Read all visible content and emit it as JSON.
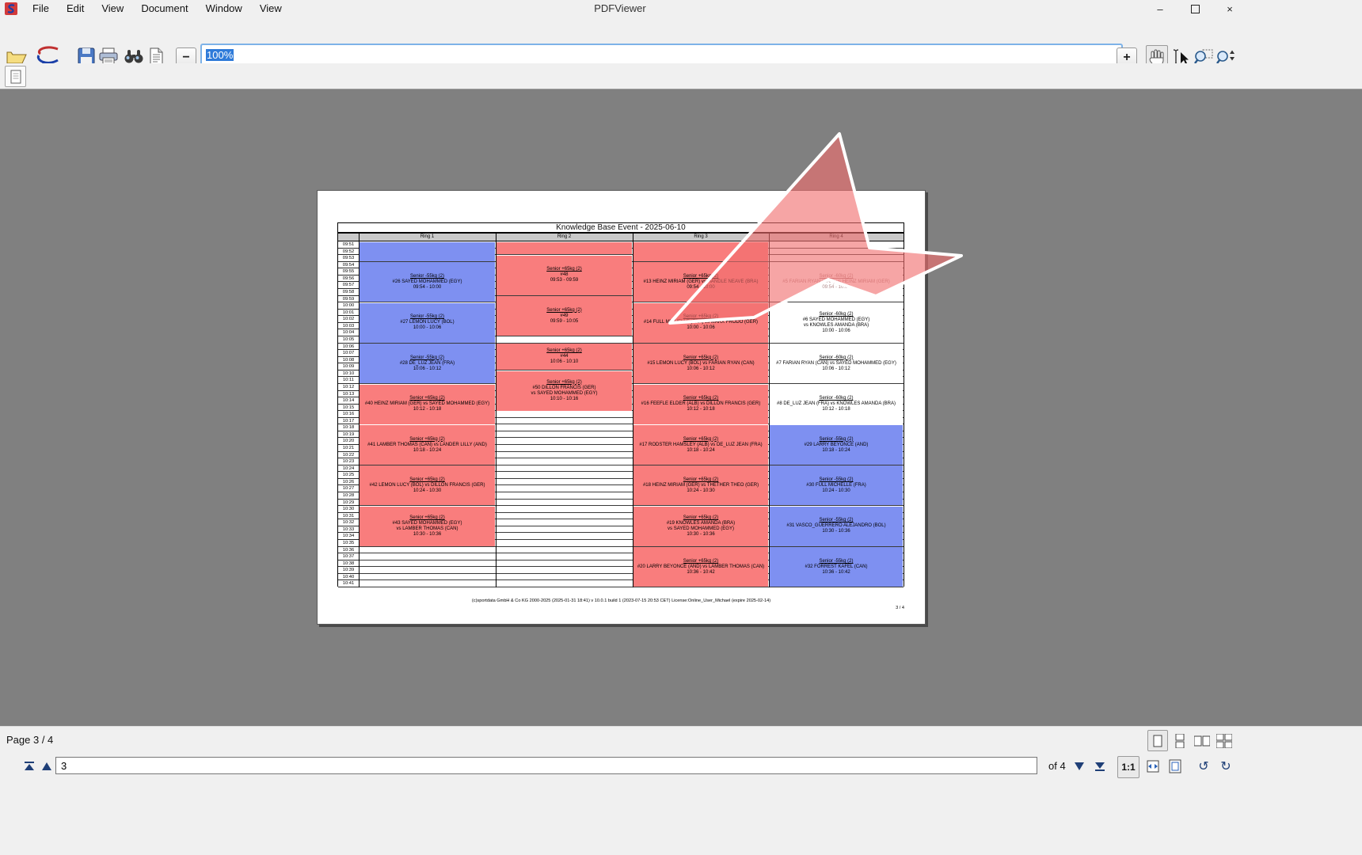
{
  "window": {
    "title": "PDFViewer",
    "menu": [
      "File",
      "Edit",
      "View",
      "Document",
      "Window",
      "View"
    ],
    "controls": {
      "minimize": "–",
      "close": "×"
    }
  },
  "toolbar": {
    "zoom_value": "100%",
    "zoom_out": "−",
    "zoom_in": "+"
  },
  "statusbar": {
    "page_label": "Page 3 / 4",
    "page_input": "3",
    "of_label": "of 4",
    "actual_size_label": "1:1",
    "rotate_left": "↺",
    "rotate_right": "↻"
  },
  "document": {
    "title": "Knowledge Base Event - 2025-06-10",
    "footer": "(c)sportdata GmbH & Co KG 2000-2025 (2025-01-31 18:41) v 10.0.1 build 1 (2023-07-15 20:53 CET) License:Online_User_Michael (expire 2025-02-14)",
    "page_number": "3 / 4",
    "rings": [
      "Ring 1",
      "Ring 2",
      "Ring 3",
      "Ring 4"
    ],
    "colors": {
      "blue": "#7e90f1",
      "red": "#f97d7d",
      "white": "#ffffff",
      "header_bg": "#c9c9c9"
    },
    "time_rows": [
      "09:51",
      "09:52",
      "09:53",
      "09:54",
      "09:55",
      "09:56",
      "09:57",
      "09:58",
      "09:59",
      "10:00",
      "10:01",
      "10:02",
      "10:03",
      "10:04",
      "10:05",
      "10:06",
      "10:07",
      "10:08",
      "10:09",
      "10:10",
      "10:11",
      "10:12",
      "10:13",
      "10:14",
      "10:15",
      "10:16",
      "10:17",
      "10:18",
      "10:19",
      "10:20",
      "10:21",
      "10:22",
      "10:23",
      "10:24",
      "10:25",
      "10:26",
      "10:27",
      "10:28",
      "10:29",
      "10:30",
      "10:31",
      "10:32",
      "10:33",
      "10:34",
      "10:35",
      "10:36",
      "10:37",
      "10:38",
      "10:39",
      "10:40",
      "10:41"
    ],
    "blocks": [
      {
        "ring": 0,
        "row": 0,
        "span": 3,
        "color": "blue",
        "lines": []
      },
      {
        "ring": 0,
        "row": 3,
        "span": 6,
        "color": "blue",
        "lines": [
          "Senior -55kg (2)",
          "#26 SAYED MOHAMMED (EGY)",
          "09:54 - 10:00"
        ]
      },
      {
        "ring": 0,
        "row": 9,
        "span": 6,
        "color": "blue",
        "lines": [
          "Senior -55kg (2)",
          "#27 LEMON LUCY (BOL)",
          "10:00 - 10:06"
        ]
      },
      {
        "ring": 0,
        "row": 15,
        "span": 6,
        "color": "blue",
        "lines": [
          "Senior -55kg (2)",
          "#28 DE_LUZ JEAN (FRA)",
          "10:06 - 10:12"
        ]
      },
      {
        "ring": 0,
        "row": 21,
        "span": 6,
        "color": "red",
        "lines": [
          "Senior +65kg (2)",
          "#40 HEINZ MIRIAM (GER) vs SAYED MOHAMMED (EGY)",
          "10:12 - 10:18"
        ]
      },
      {
        "ring": 0,
        "row": 27,
        "span": 6,
        "color": "red",
        "lines": [
          "Senior +65kg (2)",
          "#41 LAMBER THOMAS (CAN) vs LANDER LILLY (AND)",
          "10:18 - 10:24"
        ]
      },
      {
        "ring": 0,
        "row": 33,
        "span": 6,
        "color": "red",
        "lines": [
          "Senior +65kg (2)",
          "#42 LEMON LUCY (BOL) vs DILLON FRANCIS (GER)",
          "10:24 - 10:30"
        ]
      },
      {
        "ring": 0,
        "row": 39,
        "span": 6,
        "color": "red",
        "lines": [
          "Senior +65kg (2)",
          "#43 SAYED MOHAMMED (EGY)",
          "vs LAMBER THOMAS (CAN)",
          "10:30 - 10:36"
        ]
      },
      {
        "ring": 1,
        "row": 0,
        "span": 2,
        "color": "red",
        "lines": []
      },
      {
        "ring": 1,
        "row": 2,
        "span": 6,
        "color": "red",
        "lines": [
          "Senior +65kg (2)",
          "#48",
          "09:53 - 09:59"
        ]
      },
      {
        "ring": 1,
        "row": 8,
        "span": 6,
        "color": "red",
        "lines": [
          "Senior +65kg (2)",
          "#49",
          "09:59 - 10:05"
        ]
      },
      {
        "ring": 1,
        "row": 15,
        "span": 4,
        "color": "red",
        "lines": [
          "Senior +65kg (2)",
          "#44",
          "10:06 - 10:10"
        ]
      },
      {
        "ring": 1,
        "row": 19,
        "span": 6,
        "color": "red",
        "lines": [
          "Senior +65kg (2)",
          "#50 DILLON FRANCIS (GER)",
          "vs SAYED MOHAMMED (EGY)",
          "10:10 - 10:16"
        ]
      },
      {
        "ring": 2,
        "row": 0,
        "span": 3,
        "color": "red",
        "lines": []
      },
      {
        "ring": 2,
        "row": 3,
        "span": 6,
        "color": "red",
        "lines": [
          "Senior +65kg (2)",
          "#13 HEINZ MIRIAM (GER) vs HANDLE NEAVE (BRA)",
          "09:54 - 10:00"
        ]
      },
      {
        "ring": 2,
        "row": 9,
        "span": 6,
        "color": "red",
        "lines": [
          "Senior +65kg (2)",
          "#14 FULL MICHELLE (FRA) vs MARX FRODO (GER)",
          "10:00 - 10:06"
        ]
      },
      {
        "ring": 2,
        "row": 15,
        "span": 6,
        "color": "red",
        "lines": [
          "Senior +65kg (2)",
          "#15 LEMON LUCY (BOL) vs FARIAN RYAN (CAN)",
          "10:06 - 10:12"
        ]
      },
      {
        "ring": 2,
        "row": 21,
        "span": 6,
        "color": "red",
        "lines": [
          "Senior +65kg (2)",
          "#16 FEEFLE ELDER (ALB) vs DILLON FRANCIS (GER)",
          "10:12 - 10:18"
        ]
      },
      {
        "ring": 2,
        "row": 27,
        "span": 6,
        "color": "red",
        "lines": [
          "Senior +65kg (2)",
          "#17 RODSTER HAMSLEY (ALB) vs DE_LUZ JEAN (FRA)",
          "10:18 - 10:24"
        ]
      },
      {
        "ring": 2,
        "row": 33,
        "span": 6,
        "color": "red",
        "lines": [
          "Senior +65kg (2)",
          "#18 HEINZ MIRIAM (GER) vs THETHER THEO (GER)",
          "10:24 - 10:30"
        ]
      },
      {
        "ring": 2,
        "row": 39,
        "span": 6,
        "color": "red",
        "lines": [
          "Senior +65kg (2)",
          "#19 KNOWLES AMANDA (BRA)",
          "vs SAYED MOHAMMED (EGY)",
          "10:30 - 10:36"
        ]
      },
      {
        "ring": 2,
        "row": 45,
        "span": 6,
        "color": "red",
        "lines": [
          "Senior +65kg (2)",
          "#20 LARRY BEYONCE (AND) vs LAMBER THOMAS (CAN)",
          "10:36 - 10:42"
        ]
      },
      {
        "ring": 3,
        "row": 3,
        "span": 6,
        "color": "white",
        "faded": true,
        "lines": [
          "Senior -60kg (2)",
          "#5 FARIAN RYAN (CAN) vs HEINZ MIRIAM (GER)",
          "09:54 - 10:00"
        ]
      },
      {
        "ring": 3,
        "row": 9,
        "span": 6,
        "color": "white",
        "lines": [
          "Senior -60kg (2)",
          "#6 SAYED MOHAMMED (EGY)",
          "vs KNOWLES AMANDA (BRA)",
          "10:00 - 10:06"
        ]
      },
      {
        "ring": 3,
        "row": 15,
        "span": 6,
        "color": "white",
        "lines": [
          "Senior -60kg (2)",
          "#7 FARIAN RYAN (CAN) vs SAYED MOHAMMED (EGY)",
          "10:06 - 10:12"
        ]
      },
      {
        "ring": 3,
        "row": 21,
        "span": 6,
        "color": "white",
        "lines": [
          "Senior -60kg (2)",
          "#8 DE_LUZ JEAN (FRA) vs KNOWLES AMANDA (BRA)",
          "10:12 - 10:18"
        ]
      },
      {
        "ring": 3,
        "row": 27,
        "span": 6,
        "color": "blue",
        "lines": [
          "Senior -55kg (2)",
          "#29 LARRY BEYONCE (AND)",
          "10:18 - 10:24"
        ]
      },
      {
        "ring": 3,
        "row": 33,
        "span": 6,
        "color": "blue",
        "lines": [
          "Senior -55kg (2)",
          "#30 FULL MICHELLE (FRA)",
          "10:24 - 10:30"
        ]
      },
      {
        "ring": 3,
        "row": 39,
        "span": 6,
        "color": "blue",
        "lines": [
          "Senior -55kg (2)",
          "#31 VASCO_GUERRERO ALEJANDRO (BOL)",
          "10:30 - 10:36"
        ]
      },
      {
        "ring": 3,
        "row": 45,
        "span": 6,
        "color": "blue",
        "lines": [
          "Senior -55kg (2)",
          "#32 FORREST KAFEL (CAN)",
          "10:36 - 10:42"
        ]
      }
    ]
  }
}
